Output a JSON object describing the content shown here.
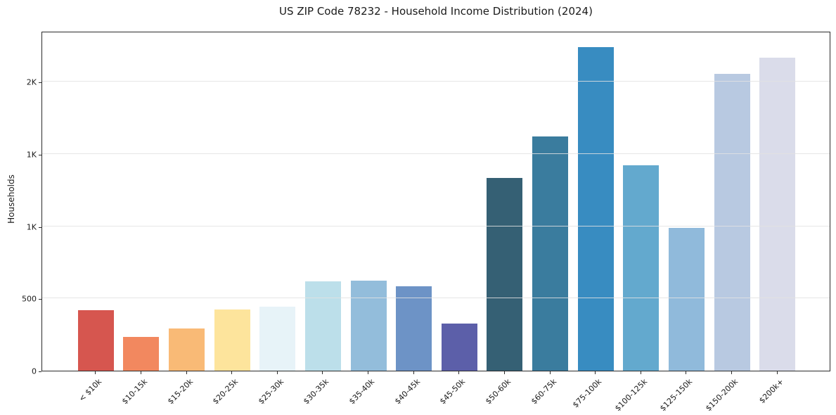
{
  "chart_data": {
    "type": "bar",
    "title": "US ZIP Code 78232 - Household Income Distribution (2024)",
    "xlabel": "",
    "ylabel": "Households",
    "categories": [
      "< $10k",
      "$10-15k",
      "$15-20k",
      "$20-25k",
      "$25-30k",
      "$30-35k",
      "$35-40k",
      "$40-45k",
      "$45-50k",
      "$50-60k",
      "$60-75k",
      "$75-100k",
      "$100-125k",
      "$125-150k",
      "$150-200k",
      "$200k+"
    ],
    "values": [
      420,
      233,
      290,
      422,
      444,
      618,
      624,
      585,
      328,
      1334,
      1620,
      2240,
      1423,
      991,
      2054,
      2167
    ],
    "bar_colors": [
      "#d6564f",
      "#f2885f",
      "#f9ba76",
      "#fde49c",
      "#e7f3f8",
      "#bcdfea",
      "#93bddb",
      "#6d93c6",
      "#5c5fa9",
      "#356074",
      "#3a7c9e",
      "#388cc1",
      "#63a9ce",
      "#90badb",
      "#b8c9e1",
      "#dadcea"
    ],
    "ylim": [
      0,
      2352
    ],
    "yticks": [
      {
        "value": 0,
        "label": "0"
      },
      {
        "value": 500,
        "label": "500"
      },
      {
        "value": 1000,
        "label": "1K"
      },
      {
        "value": 1500,
        "label": "1K"
      },
      {
        "value": 2000,
        "label": "2K"
      }
    ],
    "grid": {
      "axis": "y",
      "on_top": true,
      "color": "#e5e5e5"
    },
    "legend_position": "none",
    "colors": {
      "background": "#ffffff",
      "spine": "#2b2b2b",
      "text": "#1a1a1a",
      "gridline": "#e5e5e5"
    }
  }
}
